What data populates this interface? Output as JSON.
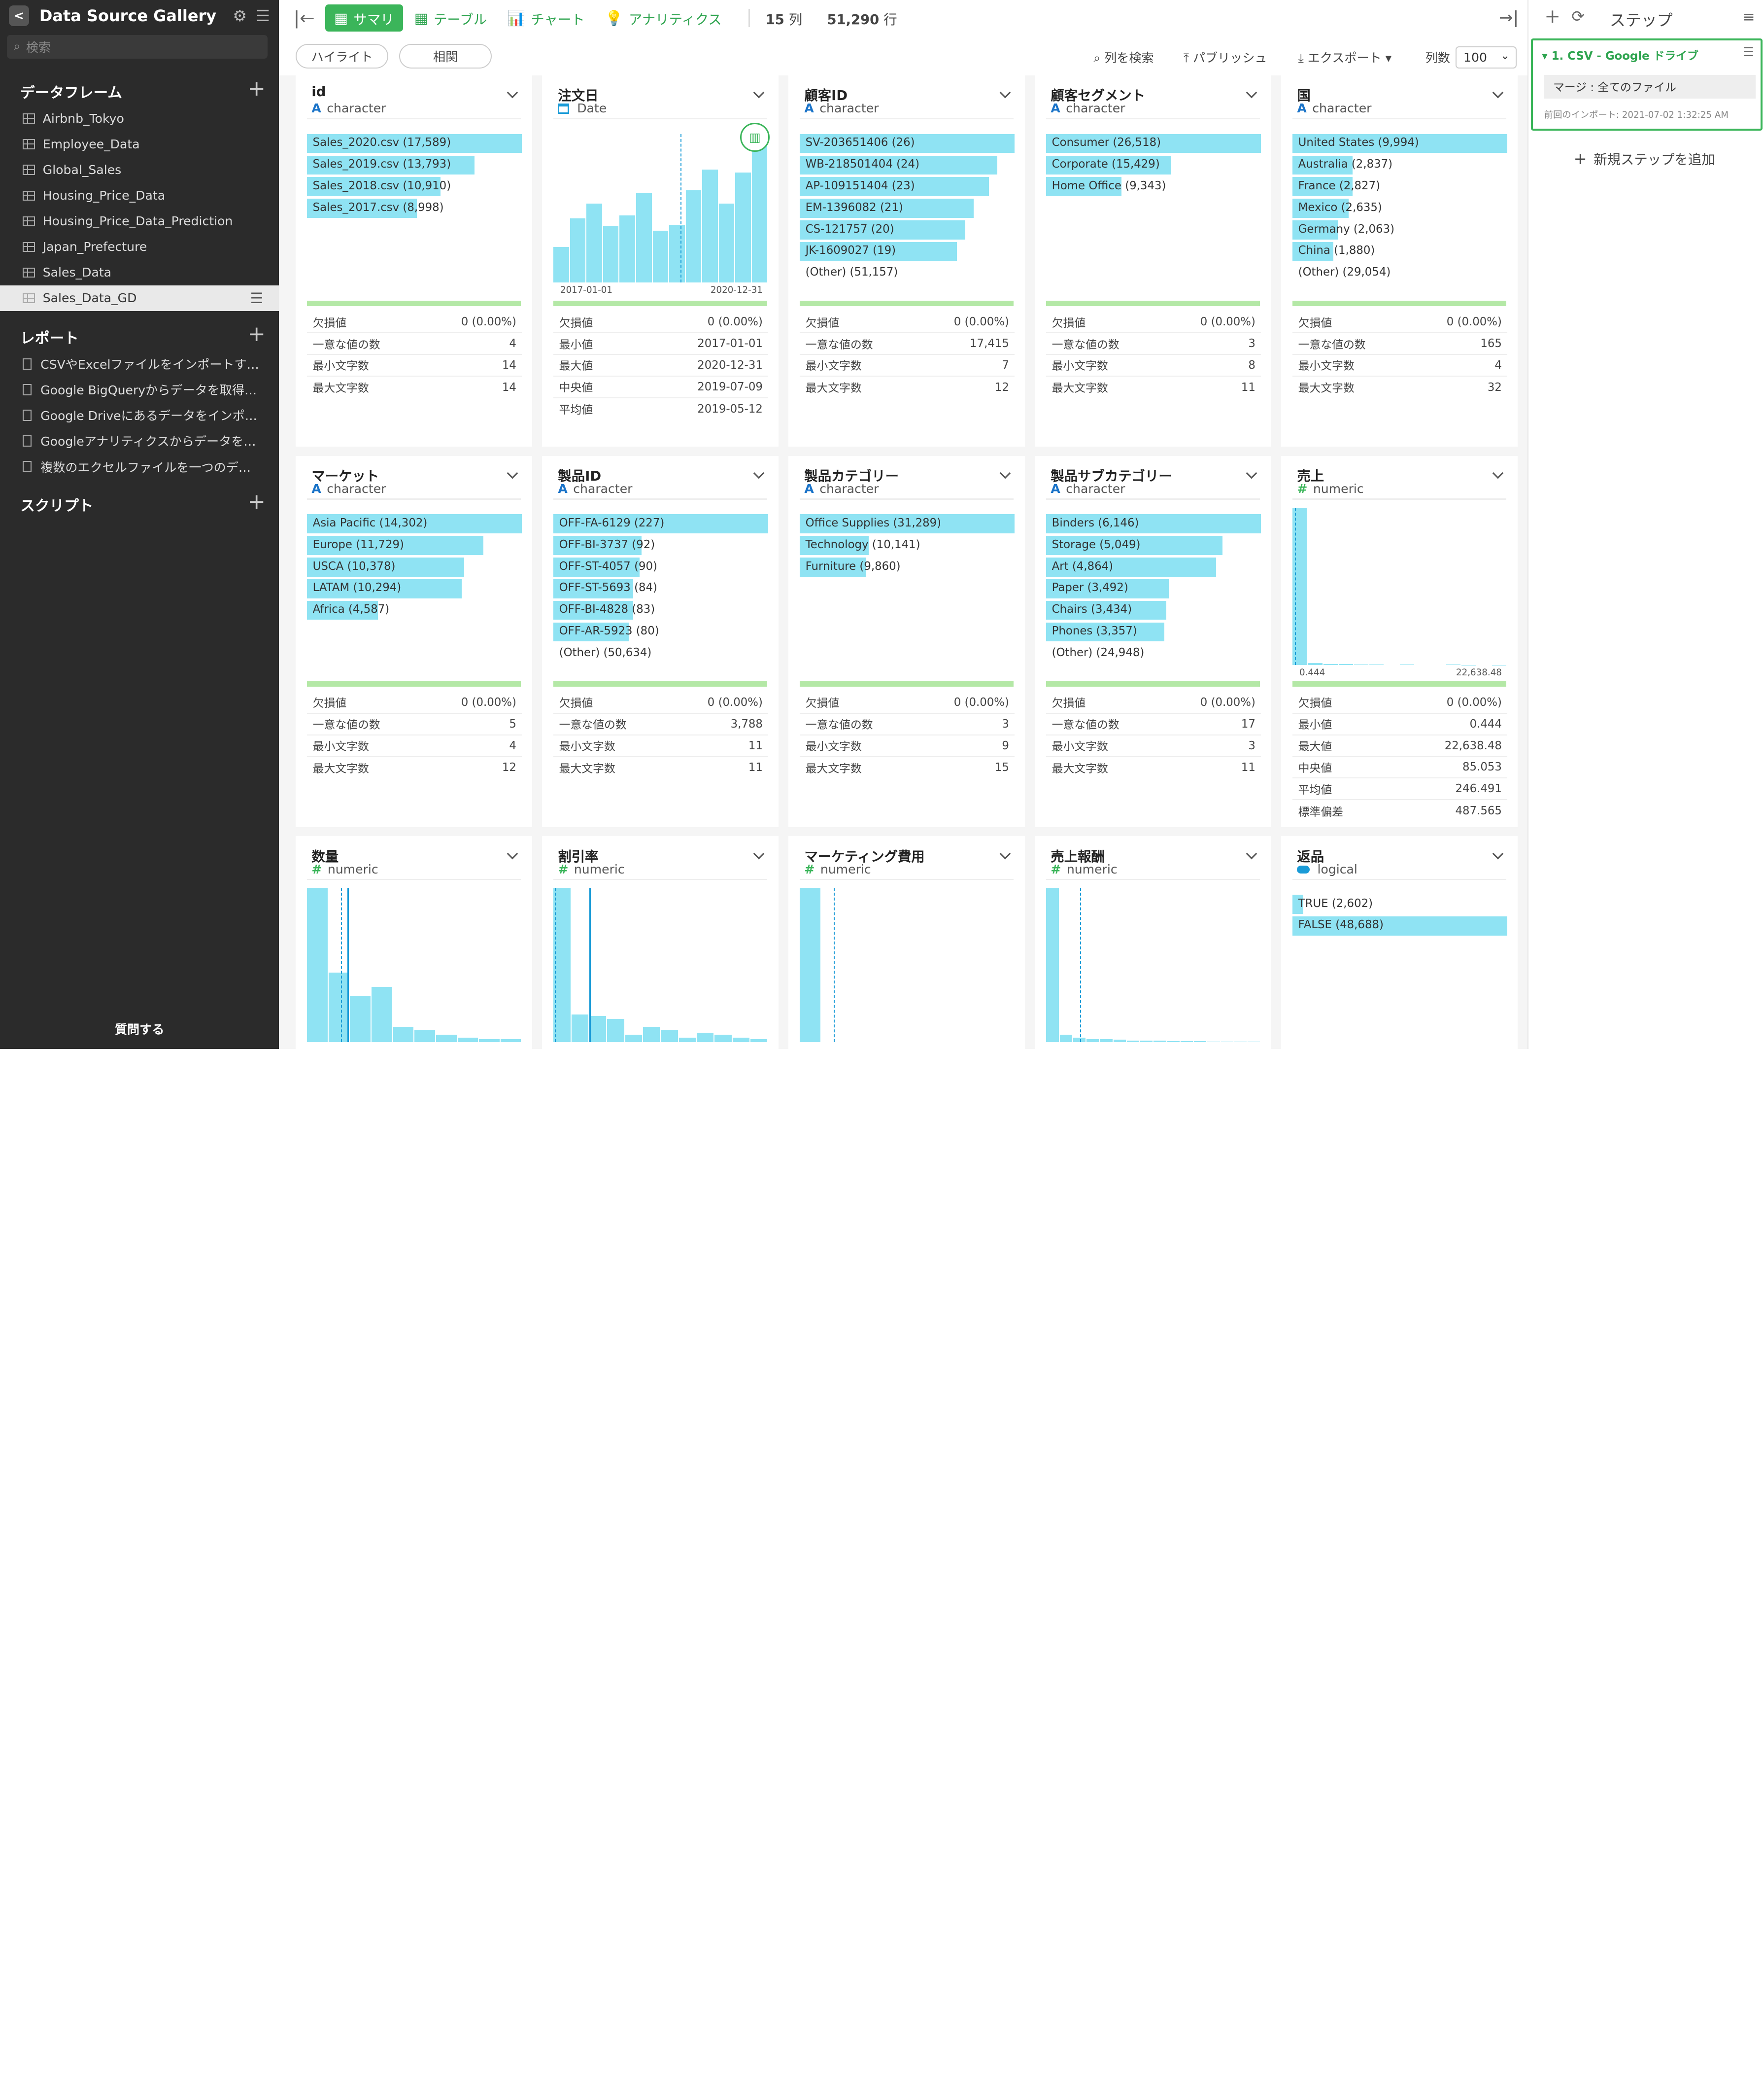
{
  "app": {
    "title": "Data Source Gallery",
    "search_placeholder": "検索",
    "ask_label": "質問する"
  },
  "sidebar": {
    "dataframes_label": "データフレーム",
    "dataframes": [
      "Airbnb_Tokyo",
      "Employee_Data",
      "Global_Sales",
      "Housing_Price_Data",
      "Housing_Price_Data_Prediction",
      "Japan_Prefecture",
      "Sales_Data",
      "Sales_Data_GD"
    ],
    "active_dataframe": "Sales_Data_GD",
    "reports_label": "レポート",
    "reports": [
      "CSVやExcelファイルをインポートす…",
      "Google BigQueryからデータを取得…",
      "Google Driveにあるデータをインポ…",
      "Googleアナリティクスからデータを…",
      "複数のエクセルファイルを一つのデ…"
    ],
    "scripts_label": "スクリプト"
  },
  "toolbar": {
    "tabs": [
      {
        "label": "サマリ",
        "icon": "summary-icon"
      },
      {
        "label": "テーブル",
        "icon": "table-icon"
      },
      {
        "label": "チャート",
        "icon": "chart-icon"
      },
      {
        "label": "アナリティクス",
        "icon": "bulb-icon"
      }
    ],
    "cols_count": "15",
    "cols_unit": "列",
    "rows_count": "51,290",
    "rows_unit": "行"
  },
  "subbar": {
    "highlight": "ハイライト",
    "correlation": "相関",
    "search_cols": "列を検索",
    "publish": "パブリッシュ",
    "export": "エクスポート",
    "cols_label": "列数",
    "cols_value": "100"
  },
  "accent": "#3bb55a",
  "bar_color": "#8fe3f3",
  "cards": [
    {
      "name": "id",
      "type": "character",
      "bars": [
        [
          "Sales_2020.csv (17,589)",
          1.0
        ],
        [
          "Sales_2019.csv (13,793)",
          0.78
        ],
        [
          "Sales_2018.csv (10,910)",
          0.62
        ],
        [
          "Sales_2017.csv (8,998)",
          0.51
        ]
      ],
      "stats": [
        [
          "欠損値",
          "0 (0.00%)"
        ],
        [
          "一意な値の数",
          "4"
        ],
        [
          "最小文字数",
          "14"
        ],
        [
          "最大文字数",
          "14"
        ]
      ]
    },
    {
      "name": "注文日",
      "type": "Date",
      "hist": [
        0.24,
        0.43,
        0.53,
        0.38,
        0.45,
        0.6,
        0.35,
        0.39,
        0.62,
        0.76,
        0.53,
        0.74,
        0.95
      ],
      "hist_min": "2017-01-01",
      "hist_max": "2020-12-31",
      "stats": [
        [
          "欠損値",
          "0 (0.00%)"
        ],
        [
          "最小値",
          "2017-01-01"
        ],
        [
          "最大値",
          "2020-12-31"
        ],
        [
          "中央値",
          "2019-07-09"
        ],
        [
          "平均値",
          "2019-05-12"
        ]
      ]
    },
    {
      "name": "顧客ID",
      "type": "character",
      "bars": [
        [
          "SV-203651406 (26)",
          1.0
        ],
        [
          "WB-218501404 (24)",
          0.92
        ],
        [
          "AP-109151404 (23)",
          0.88
        ],
        [
          "EM-1396082 (21)",
          0.81
        ],
        [
          "CS-121757 (20)",
          0.77
        ],
        [
          "JK-1609027 (19)",
          0.73
        ]
      ],
      "other": "(Other) (51,157)",
      "stats": [
        [
          "欠損値",
          "0 (0.00%)"
        ],
        [
          "一意な値の数",
          "17,415"
        ],
        [
          "最小文字数",
          "7"
        ],
        [
          "最大文字数",
          "12"
        ]
      ]
    },
    {
      "name": "顧客セグメント",
      "type": "character",
      "bars": [
        [
          "Consumer (26,518)",
          1.0
        ],
        [
          "Corporate (15,429)",
          0.58
        ],
        [
          "Home Office (9,343)",
          0.35
        ]
      ],
      "stats": [
        [
          "欠損値",
          "0 (0.00%)"
        ],
        [
          "一意な値の数",
          "3"
        ],
        [
          "最小文字数",
          "8"
        ],
        [
          "最大文字数",
          "11"
        ]
      ]
    },
    {
      "name": "国",
      "type": "character",
      "bars": [
        [
          "United States (9,994)",
          1.0
        ],
        [
          "Australia (2,837)",
          0.28
        ],
        [
          "France (2,827)",
          0.28
        ],
        [
          "Mexico (2,635)",
          0.26
        ],
        [
          "Germany (2,063)",
          0.21
        ],
        [
          "China (1,880)",
          0.19
        ]
      ],
      "other": "(Other) (29,054)",
      "stats": [
        [
          "欠損値",
          "0 (0.00%)"
        ],
        [
          "一意な値の数",
          "165"
        ],
        [
          "最小文字数",
          "4"
        ],
        [
          "最大文字数",
          "32"
        ]
      ]
    },
    {
      "name": "マーケット",
      "type": "character",
      "bars": [
        [
          "Asia Pacific (14,302)",
          1.0
        ],
        [
          "Europe (11,729)",
          0.82
        ],
        [
          "USCA (10,378)",
          0.73
        ],
        [
          "LATAM (10,294)",
          0.72
        ],
        [
          "Africa (4,587)",
          0.33
        ]
      ],
      "stats": [
        [
          "欠損値",
          "0 (0.00%)"
        ],
        [
          "一意な値の数",
          "5"
        ],
        [
          "最小文字数",
          "4"
        ],
        [
          "最大文字数",
          "12"
        ]
      ]
    },
    {
      "name": "製品ID",
      "type": "character",
      "bars": [
        [
          "OFF-FA-6129 (227)",
          1.0
        ],
        [
          "OFF-BI-3737 (92)",
          0.41
        ],
        [
          "OFF-ST-4057 (90)",
          0.4
        ],
        [
          "OFF-ST-5693 (84)",
          0.37
        ],
        [
          "OFF-BI-4828 (83)",
          0.37
        ],
        [
          "OFF-AR-5923 (80)",
          0.35
        ]
      ],
      "other": "(Other) (50,634)",
      "stats": [
        [
          "欠損値",
          "0 (0.00%)"
        ],
        [
          "一意な値の数",
          "3,788"
        ],
        [
          "最小文字数",
          "11"
        ],
        [
          "最大文字数",
          "11"
        ]
      ]
    },
    {
      "name": "製品カテゴリー",
      "type": "character",
      "bars": [
        [
          "Office Supplies (31,289)",
          1.0
        ],
        [
          "Technology (10,141)",
          0.32
        ],
        [
          "Furniture (9,860)",
          0.31
        ]
      ],
      "stats": [
        [
          "欠損値",
          "0 (0.00%)"
        ],
        [
          "一意な値の数",
          "3"
        ],
        [
          "最小文字数",
          "9"
        ],
        [
          "最大文字数",
          "15"
        ]
      ]
    },
    {
      "name": "製品サブカテゴリー",
      "type": "character",
      "bars": [
        [
          "Binders (6,146)",
          1.0
        ],
        [
          "Storage (5,049)",
          0.82
        ],
        [
          "Art (4,864)",
          0.79
        ],
        [
          "Paper (3,492)",
          0.57
        ],
        [
          "Chairs (3,434)",
          0.56
        ],
        [
          "Phones (3,357)",
          0.55
        ]
      ],
      "other": "(Other) (24,948)",
      "stats": [
        [
          "欠損値",
          "0 (0.00%)"
        ],
        [
          "一意な値の数",
          "17"
        ],
        [
          "最小文字数",
          "3"
        ],
        [
          "最大文字数",
          "11"
        ]
      ]
    },
    {
      "name": "売上",
      "type": "numeric",
      "hist": [
        1.0,
        0.012,
        0.008,
        0.006,
        0.005,
        0.004,
        0,
        0.003,
        0,
        0,
        0.003,
        0.002,
        0,
        0.002
      ],
      "hist_min": "0.444",
      "hist_max": "22,638.48",
      "stats": [
        [
          "欠損値",
          "0 (0.00%)"
        ],
        [
          "最小値",
          "0.444"
        ],
        [
          "最大値",
          "22,638.48"
        ],
        [
          "中央値",
          "85.053"
        ],
        [
          "平均値",
          "246.491"
        ],
        [
          "標準偏差",
          "487.565"
        ]
      ]
    },
    {
      "name": "数量",
      "type": "numeric",
      "hist": [
        1.0,
        0.45,
        0.3,
        0.36,
        0.1,
        0.08,
        0.05,
        0.03,
        0.02,
        0.02
      ]
    },
    {
      "name": "割引率",
      "type": "numeric",
      "hist": [
        1.0,
        0.18,
        0.17,
        0.15,
        0.05,
        0.1,
        0.08,
        0.03,
        0.06,
        0.05,
        0.03,
        0.02
      ]
    },
    {
      "name": "マーケティング費用",
      "type": "numeric",
      "hist": [
        1.0,
        0,
        0,
        0,
        0,
        0,
        0,
        0,
        0,
        0
      ]
    },
    {
      "name": "売上報酬",
      "type": "numeric",
      "hist": [
        1.0,
        0.05,
        0.03,
        0.02,
        0.02,
        0.015,
        0.01,
        0.01,
        0.01,
        0.008,
        0.008,
        0.006,
        0.005,
        0.005,
        0.004,
        0.003
      ]
    },
    {
      "name": "返品",
      "type": "logical",
      "bars": [
        [
          "TRUE (2,602)",
          0.05
        ],
        [
          "FALSE (48,688)",
          1.0
        ]
      ]
    }
  ],
  "steps": {
    "header": "ステップ",
    "step_title": "1. CSV - Google ドライブ",
    "merge": "マージ : 全てのファイル",
    "last_import": "前回のインポート: 2021-07-02 1:32:25 AM",
    "add_step": "新規ステップを追加"
  }
}
